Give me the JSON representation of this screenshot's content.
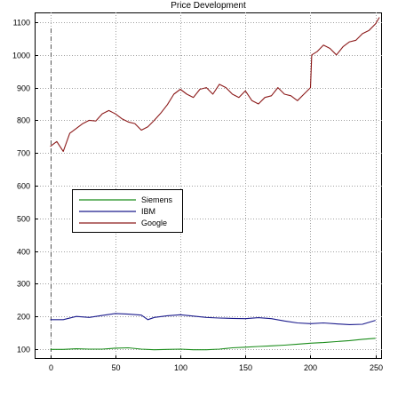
{
  "chart_data": {
    "type": "line",
    "title": "Price Development",
    "xlabel": "",
    "ylabel": "",
    "xlim": [
      -12,
      255
    ],
    "ylim": [
      70,
      1130
    ],
    "x_ticks": [
      0,
      50,
      100,
      150,
      200,
      250
    ],
    "y_ticks": [
      100,
      200,
      300,
      400,
      500,
      600,
      700,
      800,
      900,
      1000,
      1100
    ],
    "grid": true,
    "legend_position": "left",
    "vertical_marker_x": 0,
    "series": [
      {
        "name": "Siemens",
        "color": "#1a8c1a",
        "x": [
          0,
          10,
          20,
          30,
          40,
          50,
          60,
          70,
          80,
          90,
          100,
          110,
          120,
          130,
          140,
          150,
          160,
          170,
          180,
          190,
          200,
          210,
          220,
          230,
          240,
          250
        ],
        "values": [
          99,
          99,
          101,
          100,
          100,
          103,
          104,
          100,
          98,
          99,
          100,
          98,
          98,
          100,
          104,
          106,
          108,
          110,
          112,
          115,
          118,
          120,
          123,
          126,
          130,
          133
        ]
      },
      {
        "name": "IBM",
        "color": "#1a1a8c",
        "x": [
          0,
          10,
          20,
          30,
          40,
          50,
          60,
          70,
          75,
          80,
          90,
          100,
          110,
          120,
          130,
          140,
          150,
          160,
          170,
          180,
          190,
          200,
          210,
          220,
          230,
          240,
          250
        ],
        "values": [
          190,
          190,
          200,
          197,
          203,
          209,
          207,
          204,
          190,
          197,
          202,
          205,
          201,
          197,
          195,
          194,
          193,
          196,
          193,
          186,
          180,
          178,
          180,
          177,
          175,
          176,
          188
        ]
      },
      {
        "name": "Google",
        "color": "#8c1a1a",
        "x": [
          0,
          5,
          10,
          15,
          20,
          25,
          30,
          35,
          40,
          45,
          50,
          55,
          60,
          65,
          70,
          75,
          80,
          85,
          90,
          95,
          100,
          105,
          110,
          115,
          120,
          125,
          130,
          135,
          140,
          145,
          150,
          155,
          160,
          165,
          170,
          175,
          180,
          185,
          190,
          195,
          200,
          201,
          205,
          210,
          215,
          220,
          225,
          230,
          235,
          240,
          245,
          250,
          253
        ],
        "values": [
          720,
          735,
          705,
          760,
          775,
          790,
          800,
          798,
          820,
          830,
          820,
          805,
          795,
          790,
          770,
          780,
          800,
          822,
          848,
          880,
          895,
          880,
          870,
          895,
          900,
          880,
          910,
          900,
          880,
          870,
          890,
          860,
          850,
          870,
          875,
          900,
          880,
          875,
          860,
          880,
          900,
          1000,
          1010,
          1030,
          1020,
          1000,
          1025,
          1040,
          1045,
          1065,
          1075,
          1095,
          1115
        ]
      }
    ]
  }
}
